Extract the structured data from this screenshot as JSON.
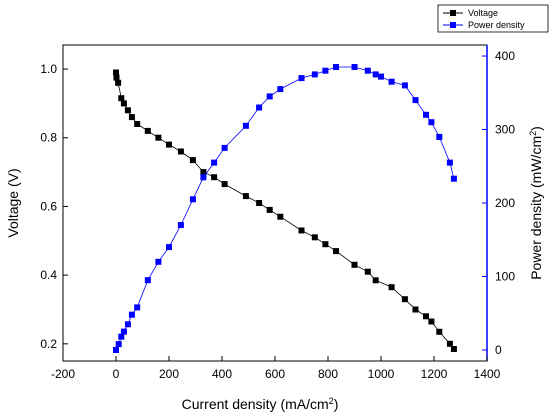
{
  "chart_data": {
    "type": "line",
    "xlabel": "Current density (mA/cm²)",
    "ylabel_left": "Voltage (V)",
    "ylabel_right": "Power density (mW/cm²)",
    "xlim": [
      -200,
      1400
    ],
    "xticks": [
      -200,
      0,
      200,
      400,
      600,
      800,
      1000,
      1200,
      1400
    ],
    "ylim_left": [
      0.15,
      1.07
    ],
    "yticks_left": [
      0.2,
      0.4,
      0.6,
      0.8,
      1.0
    ],
    "ytick_labels_left": [
      "0.2",
      "0.4",
      "0.6",
      "0.8",
      "1.0"
    ],
    "ylim_right": [
      -15,
      415
    ],
    "yticks_right": [
      0,
      100,
      200,
      300,
      400
    ],
    "legend_position": "top-right",
    "series": [
      {
        "name": "Voltage",
        "axis": "left",
        "color": "#000000",
        "marker": "square",
        "x": [
          0,
          2,
          8,
          20,
          30,
          45,
          60,
          80,
          120,
          160,
          200,
          245,
          290,
          330,
          370,
          410,
          490,
          540,
          580,
          620,
          700,
          750,
          790,
          830,
          900,
          950,
          980,
          1040,
          1090,
          1130,
          1170,
          1190,
          1220,
          1260,
          1275
        ],
        "y": [
          0.99,
          0.975,
          0.96,
          0.915,
          0.9,
          0.88,
          0.86,
          0.84,
          0.82,
          0.8,
          0.78,
          0.76,
          0.735,
          0.7,
          0.685,
          0.665,
          0.63,
          0.61,
          0.59,
          0.57,
          0.53,
          0.51,
          0.49,
          0.47,
          0.43,
          0.41,
          0.385,
          0.365,
          0.33,
          0.3,
          0.28,
          0.265,
          0.235,
          0.2,
          0.185
        ]
      },
      {
        "name": "Power density",
        "axis": "right",
        "color": "#0000ff",
        "marker": "square",
        "x": [
          0,
          10,
          20,
          30,
          45,
          60,
          80,
          120,
          160,
          200,
          245,
          290,
          330,
          370,
          410,
          490,
          540,
          580,
          620,
          700,
          750,
          790,
          830,
          900,
          950,
          980,
          1000,
          1040,
          1090,
          1130,
          1170,
          1190,
          1220,
          1260,
          1275
        ],
        "y": [
          0,
          8,
          18,
          25,
          35,
          48,
          58,
          95,
          120,
          140,
          170,
          205,
          235,
          255,
          275,
          305,
          330,
          345,
          355,
          370,
          375,
          380,
          385,
          385,
          380,
          375,
          372,
          365,
          360,
          340,
          320,
          310,
          290,
          255,
          233
        ]
      }
    ]
  }
}
